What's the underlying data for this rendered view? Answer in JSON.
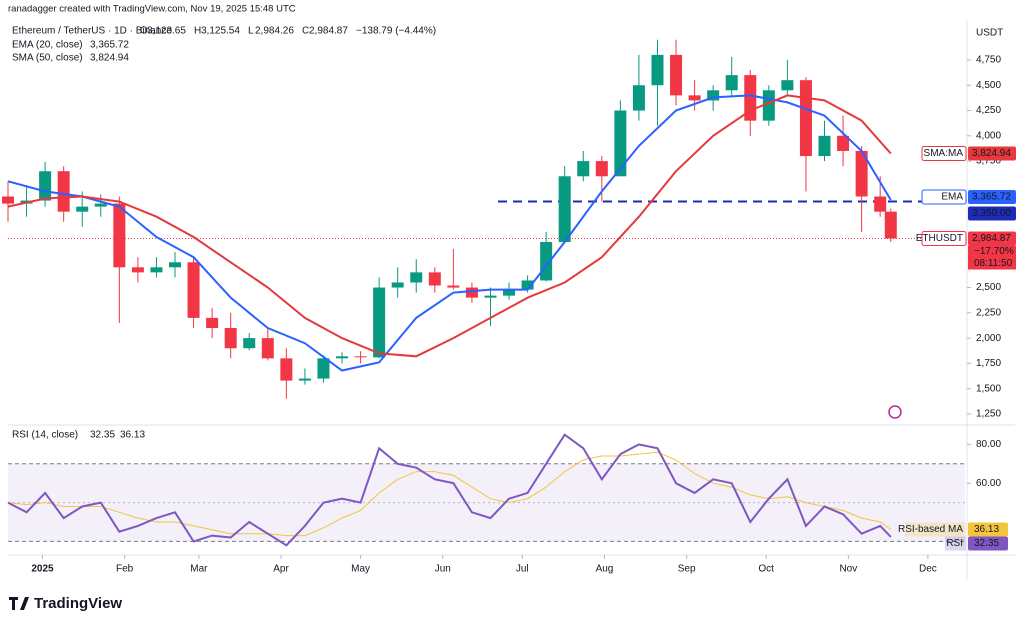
{
  "header": "ranadagger created with TradingView.com, Nov 19, 2025 15:48 UTC",
  "footer": "TradingView",
  "chart_data": [
    {
      "type": "candlestick",
      "title": "Ethereum / TetherUS · 1D · Binance",
      "currency": "USDT",
      "ohlc_legend": [
        {
          "label": "O",
          "value": "3,123.65"
        },
        {
          "label": "H",
          "value": "3,125.54"
        },
        {
          "label": "L",
          "value": "2,984.26"
        },
        {
          "label": "C",
          "value": "2,984.87"
        }
      ],
      "change": "−138.79 (−4.44%)",
      "up_color": "#089981",
      "down_color": "#f23645",
      "x": [
        -13,
        -6,
        1,
        8,
        15,
        22,
        29,
        36,
        43,
        50,
        57,
        64,
        71,
        78,
        85,
        92,
        99,
        106,
        113,
        120,
        127,
        134,
        141,
        148,
        155,
        162,
        169,
        176,
        183,
        190,
        197,
        204,
        211,
        218,
        225,
        232,
        239,
        246,
        253,
        260,
        267,
        274,
        281,
        288,
        295,
        302,
        309,
        316,
        320
      ],
      "open": [
        3400,
        3330,
        3360,
        3650,
        3250,
        3300,
        3330,
        2700,
        2650,
        2700,
        2750,
        2200,
        2100,
        1900,
        2000,
        1800,
        1580,
        1600,
        1800,
        1820,
        1810,
        2500,
        2550,
        2650,
        2520,
        2500,
        2400,
        2420,
        2480,
        2570,
        2950,
        3600,
        3750,
        3600,
        4250,
        4500,
        4800,
        4400,
        4350,
        4450,
        4600,
        4150,
        4450,
        4550,
        3800,
        4000,
        3850,
        3400,
        3250
      ],
      "high": [
        3550,
        3500,
        3740,
        3700,
        3450,
        3420,
        3400,
        2800,
        2800,
        2850,
        2800,
        2300,
        2250,
        2050,
        2100,
        1900,
        1700,
        1830,
        1860,
        1870,
        2600,
        2700,
        2780,
        2700,
        2880,
        2550,
        2500,
        2550,
        2620,
        3050,
        3700,
        3850,
        3800,
        4350,
        4800,
        4950,
        4950,
        4550,
        4500,
        4780,
        4650,
        4500,
        4750,
        4580,
        4150,
        4200,
        3900,
        3600,
        3280
      ],
      "low": [
        3150,
        3200,
        3300,
        3150,
        3100,
        3200,
        2150,
        2550,
        2600,
        2600,
        2100,
        2000,
        1800,
        1880,
        1780,
        1400,
        1540,
        1560,
        1750,
        1750,
        1800,
        2400,
        2450,
        2450,
        2480,
        2350,
        2120,
        2380,
        2450,
        2560,
        2950,
        3550,
        3350,
        3600,
        4150,
        4100,
        4300,
        4250,
        4250,
        4400,
        4000,
        4100,
        4400,
        3450,
        3750,
        3700,
        3050,
        3200,
        2950
      ],
      "close": [
        3330,
        3360,
        3650,
        3250,
        3300,
        3330,
        2700,
        2650,
        2700,
        2750,
        2200,
        2100,
        1900,
        2000,
        1800,
        1580,
        1600,
        1800,
        1820,
        1810,
        2500,
        2550,
        2650,
        2520,
        2500,
        2400,
        2420,
        2480,
        2570,
        2950,
        3600,
        3750,
        3600,
        4250,
        4500,
        4800,
        4400,
        4350,
        4450,
        4600,
        4150,
        4450,
        4550,
        3800,
        4000,
        3850,
        3400,
        3250,
        2984.87
      ],
      "series": [
        {
          "name": "EMA (20, close)",
          "tag": "EMA",
          "last_label": "3,365.72",
          "color": "#2962ff",
          "x": [
            -13,
            1,
            15,
            29,
            43,
            57,
            71,
            85,
            99,
            113,
            127,
            141,
            155,
            169,
            183,
            197,
            211,
            225,
            239,
            253,
            267,
            281,
            295,
            309,
            320
          ],
          "values": [
            3550,
            3450,
            3400,
            3300,
            3000,
            2800,
            2400,
            2100,
            1950,
            1680,
            1760,
            2200,
            2450,
            2480,
            2480,
            2950,
            3450,
            3900,
            4250,
            4380,
            4400,
            4330,
            4200,
            3850,
            3365.72
          ]
        },
        {
          "name": "SMA (50, close)",
          "tag": "SMA:MA",
          "last_label": "3,824.94",
          "color": "#e5393b",
          "x": [
            -13,
            1,
            15,
            29,
            43,
            57,
            71,
            85,
            99,
            113,
            127,
            141,
            155,
            169,
            183,
            197,
            211,
            225,
            239,
            253,
            267,
            281,
            295,
            309,
            320
          ],
          "values": [
            3300,
            3380,
            3400,
            3350,
            3200,
            3000,
            2750,
            2500,
            2200,
            2000,
            1850,
            1820,
            2000,
            2200,
            2400,
            2550,
            2800,
            3200,
            3650,
            4000,
            4250,
            4400,
            4350,
            4150,
            3824.94
          ]
        }
      ],
      "hline": {
        "value": 3350,
        "label": "3,350.00",
        "color": "#1c2bb8"
      },
      "last_price": {
        "symbol": "ETHUSDT",
        "value": 2984.87,
        "label": "2,984.87",
        "change": "−17.70%",
        "countdown": "08:11:50"
      },
      "xlim": [
        -13,
        348
      ],
      "ylim": [
        1141,
        5145
      ],
      "yticks": [
        {
          "value": 1250,
          "label": "1,250"
        },
        {
          "value": 1500,
          "label": "1,500"
        },
        {
          "value": 1750,
          "label": "1,750"
        },
        {
          "value": 2000,
          "label": "2,000"
        },
        {
          "value": 2250,
          "label": "2,250"
        },
        {
          "value": 2500,
          "label": "2,500"
        },
        {
          "value": 3750,
          "label": "3,750"
        },
        {
          "value": 4000,
          "label": "4,000"
        },
        {
          "value": 4250,
          "label": "4,250"
        },
        {
          "value": 4500,
          "label": "4,500"
        },
        {
          "value": 4750,
          "label": "4,750"
        }
      ],
      "xticks": [
        {
          "value": 0,
          "label": "2025"
        },
        {
          "value": 31,
          "label": "Feb"
        },
        {
          "value": 59,
          "label": "Mar"
        },
        {
          "value": 90,
          "label": "Apr"
        },
        {
          "value": 120,
          "label": "May"
        },
        {
          "value": 151,
          "label": "Jun"
        },
        {
          "value": 181,
          "label": "Jul"
        },
        {
          "value": 212,
          "label": "Aug"
        },
        {
          "value": 243,
          "label": "Sep"
        },
        {
          "value": 273,
          "label": "Oct"
        },
        {
          "value": 304,
          "label": "Nov"
        },
        {
          "value": 334,
          "label": "Dec"
        }
      ]
    },
    {
      "type": "line",
      "title": "RSI (14, close)",
      "series": [
        {
          "name": "RSI",
          "last_label": "32.35",
          "color": "#7e57c2",
          "values": [
            50,
            45,
            55,
            42,
            48,
            50,
            35,
            38,
            42,
            45,
            30,
            33,
            32,
            40,
            34,
            28,
            38,
            50,
            52,
            50,
            78,
            70,
            68,
            62,
            60,
            45,
            42,
            52,
            55,
            70,
            85,
            78,
            62,
            75,
            80,
            78,
            60,
            55,
            62,
            60,
            40,
            52,
            62,
            38,
            48,
            44,
            34,
            38,
            32.35
          ]
        },
        {
          "name": "RSI-based MA",
          "last_label": "36.13",
          "color": "#f2c53d",
          "values": [
            50,
            49,
            50,
            48,
            48,
            48,
            45,
            42,
            40,
            40,
            38,
            36,
            34,
            34,
            34,
            33,
            33,
            37,
            42,
            46,
            55,
            62,
            66,
            66,
            64,
            58,
            52,
            50,
            52,
            58,
            66,
            72,
            74,
            74,
            75,
            76,
            72,
            65,
            60,
            58,
            54,
            52,
            53,
            50,
            48,
            46,
            42,
            40,
            36.13
          ]
        }
      ],
      "band": [
        30,
        70
      ],
      "ylim": [
        23,
        90
      ],
      "yticks": [
        {
          "value": 80,
          "label": "80.00"
        },
        {
          "value": 60,
          "label": "60.00"
        }
      ]
    }
  ]
}
